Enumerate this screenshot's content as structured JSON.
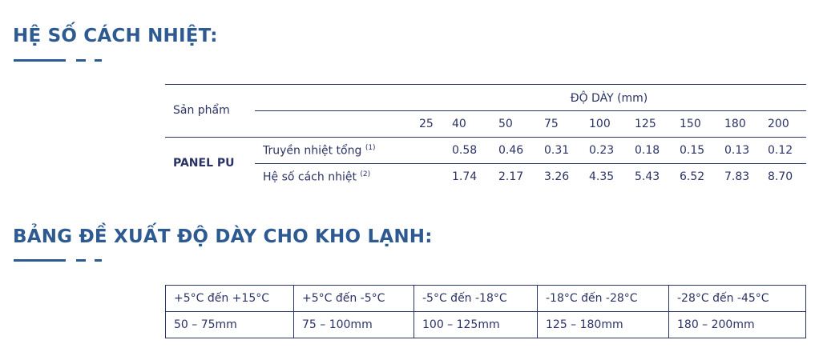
{
  "section1": {
    "title": "HỆ SỐ CÁCH NHIỆT:",
    "table": {
      "product_header": "Sản phẩm",
      "thickness_header": "ĐỘ DÀY (mm)",
      "thicknesses": [
        "25",
        "40",
        "50",
        "75",
        "100",
        "125",
        "150",
        "180",
        "200"
      ],
      "product": "PANEL PU",
      "rows": [
        {
          "label": "Truyền nhiệt tổng",
          "note": "(1)",
          "values": [
            "",
            "0.58",
            "0.46",
            "0.31",
            "0.23",
            "0.18",
            "0.15",
            "0.13",
            "0.12"
          ]
        },
        {
          "label": "Hệ số cách nhiệt",
          "note": "(2)",
          "values": [
            "",
            "1.74",
            "2.17",
            "3.26",
            "4.35",
            "5.43",
            "6.52",
            "7.83",
            "8.70"
          ]
        }
      ]
    }
  },
  "section2": {
    "title": "BẢNG ĐỀ XUẤT ĐỘ DÀY CHO KHO LẠNH:",
    "table": {
      "ranges": [
        "+5°C đến +15°C",
        "+5°C đến -5°C",
        "-5°C đến -18°C",
        "-18°C đến -28°C",
        "-28°C đến -45°C"
      ],
      "thicknesses": [
        "50 – 75mm",
        "75 – 100mm",
        "100 – 125mm",
        "125 – 180mm",
        "180 – 200mm"
      ]
    }
  }
}
